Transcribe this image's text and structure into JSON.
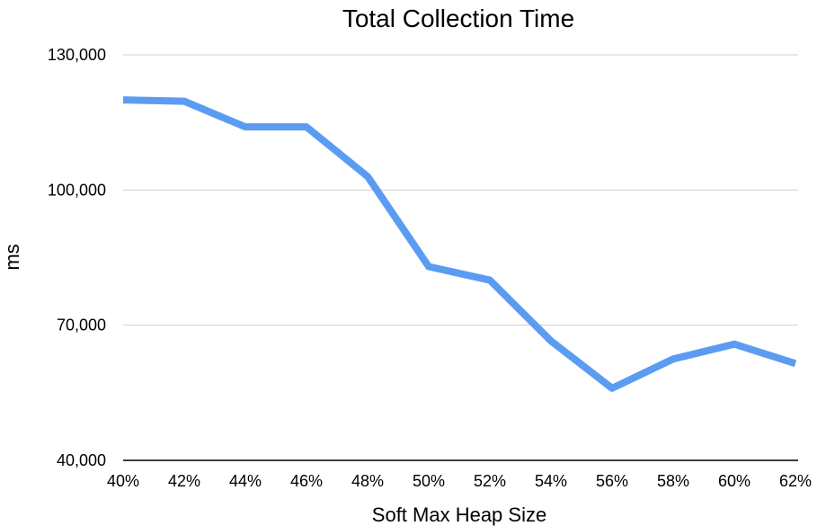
{
  "chart_data": {
    "type": "line",
    "title": "Total Collection Time",
    "xlabel": "Soft Max Heap Size",
    "ylabel": "ms",
    "categories": [
      "40%",
      "42%",
      "44%",
      "46%",
      "48%",
      "50%",
      "52%",
      "54%",
      "56%",
      "58%",
      "60%",
      "62%"
    ],
    "series": [
      {
        "name": "",
        "values": [
          120000,
          119700,
          114000,
          114000,
          103000,
          83000,
          80000,
          66500,
          56000,
          62500,
          65800,
          61500
        ]
      }
    ],
    "yticks": [
      40000,
      70000,
      100000,
      130000
    ],
    "ytick_labels": [
      "40,000",
      "70,000",
      "100,000",
      "130,000"
    ],
    "ylim": [
      40000,
      130000
    ],
    "grid": true,
    "legend": "none",
    "line_color": "#5b9cf2"
  }
}
